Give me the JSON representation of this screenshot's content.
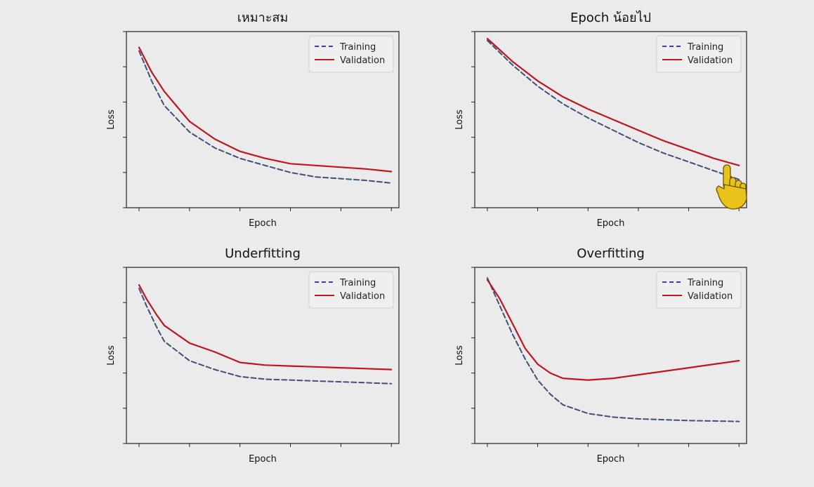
{
  "chart_data": [
    {
      "type": "line",
      "title": "เหมาะสม",
      "xlabel": "Epoch",
      "ylabel": "Loss",
      "grid": false,
      "legend": "top-right",
      "series": [
        {
          "name": "Training",
          "color": "#3d4f7c",
          "legend_color": "#3a3ad0",
          "style": "dashed",
          "x": [
            0,
            0.5,
            1,
            2,
            3,
            4,
            5,
            6,
            7,
            8,
            9,
            10
          ],
          "y": [
            0.89,
            0.72,
            0.58,
            0.43,
            0.34,
            0.28,
            0.24,
            0.2,
            0.175,
            0.165,
            0.155,
            0.14
          ]
        },
        {
          "name": "Validation",
          "color": "#c0161d",
          "style": "solid",
          "x": [
            0,
            0.5,
            1,
            2,
            3,
            4,
            5,
            6,
            7,
            8,
            9,
            10
          ],
          "y": [
            0.91,
            0.77,
            0.66,
            0.49,
            0.39,
            0.32,
            0.28,
            0.25,
            0.24,
            0.23,
            0.22,
            0.205
          ]
        }
      ]
    },
    {
      "type": "line",
      "title": "Epoch น้อยไป",
      "xlabel": "Epoch",
      "ylabel": "Loss",
      "grid": false,
      "legend": "top-right",
      "series": [
        {
          "name": "Training",
          "color": "#3d4f7c",
          "legend_color": "#3a3ad0",
          "style": "dashed",
          "x": [
            0,
            1,
            2,
            3,
            4,
            5,
            6,
            7,
            8,
            9,
            10
          ],
          "y": [
            0.95,
            0.81,
            0.69,
            0.59,
            0.51,
            0.44,
            0.37,
            0.31,
            0.26,
            0.21,
            0.16
          ]
        },
        {
          "name": "Validation",
          "color": "#c0161d",
          "style": "solid",
          "x": [
            0,
            1,
            2,
            3,
            4,
            5,
            6,
            7,
            8,
            9,
            10
          ],
          "y": [
            0.96,
            0.83,
            0.72,
            0.63,
            0.56,
            0.5,
            0.44,
            0.38,
            0.33,
            0.28,
            0.24
          ]
        }
      ]
    },
    {
      "type": "line",
      "title": "Underfitting",
      "xlabel": "Epoch",
      "ylabel": "Loss",
      "grid": false,
      "legend": "top-right",
      "series": [
        {
          "name": "Training",
          "color": "#3d4f7c",
          "legend_color": "#3a3ad0",
          "style": "dashed",
          "x": [
            0,
            0.3,
            0.7,
            1,
            2,
            3,
            4,
            5,
            6,
            7,
            8,
            9,
            10
          ],
          "y": [
            0.88,
            0.78,
            0.66,
            0.58,
            0.47,
            0.42,
            0.38,
            0.365,
            0.36,
            0.355,
            0.35,
            0.345,
            0.34
          ]
        },
        {
          "name": "Validation",
          "color": "#c0161d",
          "style": "solid",
          "x": [
            0,
            0.3,
            0.7,
            1,
            2,
            3,
            4,
            5,
            6,
            7,
            8,
            9,
            10
          ],
          "y": [
            0.9,
            0.82,
            0.73,
            0.67,
            0.57,
            0.52,
            0.46,
            0.445,
            0.44,
            0.435,
            0.43,
            0.425,
            0.42
          ]
        }
      ]
    },
    {
      "type": "line",
      "title": "Overfitting",
      "xlabel": "Epoch",
      "ylabel": "Loss",
      "grid": false,
      "legend": "top-right",
      "series": [
        {
          "name": "Training",
          "color": "#3d4f7c",
          "legend_color": "#3a3ad0",
          "style": "dashed",
          "x": [
            0,
            0.5,
            1,
            1.5,
            2,
            2.5,
            3,
            4,
            5,
            6,
            7,
            8,
            9,
            10
          ],
          "y": [
            0.94,
            0.78,
            0.62,
            0.48,
            0.36,
            0.28,
            0.22,
            0.17,
            0.15,
            0.14,
            0.135,
            0.13,
            0.128,
            0.125
          ]
        },
        {
          "name": "Validation",
          "color": "#c0161d",
          "style": "solid",
          "x": [
            0,
            0.5,
            1,
            1.5,
            2,
            2.5,
            3,
            4,
            5,
            6,
            7,
            8,
            9,
            10
          ],
          "y": [
            0.93,
            0.82,
            0.68,
            0.54,
            0.45,
            0.4,
            0.37,
            0.36,
            0.37,
            0.39,
            0.41,
            0.43,
            0.45,
            0.47
          ]
        }
      ]
    }
  ],
  "cursor": {
    "icon": "pointing-hand-cursor-icon",
    "color": "#e9c31a"
  }
}
